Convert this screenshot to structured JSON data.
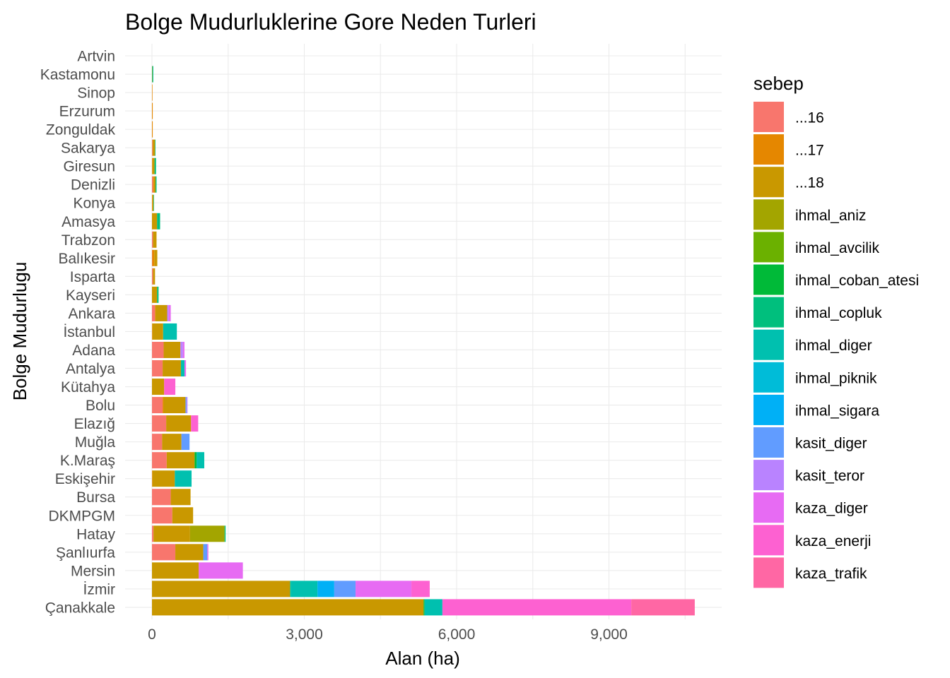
{
  "chart_data": {
    "type": "bar",
    "orientation": "horizontal",
    "stacked": true,
    "title": "Bolge Mudurluklerine Gore Neden Turleri",
    "xlabel": "Alan (ha)",
    "ylabel": "Bolge Mudurlugu",
    "xlim": [
      -150,
      11250
    ],
    "x_ticks": [
      0,
      3000,
      6000,
      9000
    ],
    "x_tick_labels": [
      "0",
      "3,000",
      "6,000",
      "9,000"
    ],
    "grid": true,
    "legend_position": "right",
    "legend_title": "sebep",
    "categories": [
      "Artvin",
      "Kastamonu",
      "Sinop",
      "Erzurum",
      "Zonguldak",
      "Sakarya",
      "Giresun",
      "Denizli",
      "Konya",
      "Amasya",
      "Trabzon",
      "Balıkesir",
      "Isparta",
      "Kayseri",
      "Ankara",
      "İstanbul",
      "Adana",
      "Antalya",
      "Kütahya",
      "Bolu",
      "Elazığ",
      "Muğla",
      "K.Maraş",
      "Eskişehir",
      "Bursa",
      "DKMPGM",
      "Hatay",
      "Şanlıurfa",
      "Mersin",
      "İzmir",
      "Çanakkale"
    ],
    "series": [
      {
        "name": "...16",
        "color": "#F8766D",
        "values": [
          0,
          0,
          0,
          0,
          0,
          10,
          0,
          20,
          0,
          0,
          20,
          5,
          20,
          0,
          60,
          0,
          230,
          210,
          0,
          210,
          280,
          200,
          290,
          0,
          370,
          400,
          30,
          460,
          0,
          0,
          0
        ]
      },
      {
        "name": "...17",
        "color": "#E58700",
        "values": [
          0,
          5,
          10,
          15,
          15,
          10,
          10,
          20,
          10,
          0,
          0,
          40,
          0,
          0,
          10,
          10,
          0,
          0,
          0,
          20,
          0,
          0,
          0,
          10,
          0,
          0,
          0,
          0,
          0,
          0,
          0
        ]
      },
      {
        "name": "...18",
        "color": "#C99800",
        "values": [
          0,
          0,
          0,
          0,
          0,
          40,
          40,
          30,
          20,
          100,
          70,
          60,
          40,
          100,
          230,
          210,
          330,
          360,
          240,
          430,
          490,
          380,
          550,
          440,
          390,
          410,
          720,
          550,
          920,
          2720,
          5350
        ]
      },
      {
        "name": "ihmal_aniz",
        "color": "#A3A500",
        "values": [
          0,
          0,
          0,
          0,
          0,
          0,
          0,
          0,
          0,
          0,
          0,
          0,
          0,
          0,
          0,
          0,
          0,
          0,
          0,
          0,
          0,
          0,
          0,
          0,
          0,
          0,
          680,
          0,
          0,
          0,
          0
        ]
      },
      {
        "name": "ihmal_avcilik",
        "color": "#6BB100",
        "values": [
          0,
          0,
          0,
          0,
          0,
          0,
          0,
          0,
          0,
          0,
          0,
          0,
          0,
          0,
          0,
          0,
          0,
          0,
          0,
          0,
          0,
          0,
          0,
          0,
          0,
          0,
          0,
          0,
          0,
          0,
          0
        ]
      },
      {
        "name": "ihmal_coban_atesi",
        "color": "#00BA38",
        "values": [
          0,
          5,
          0,
          0,
          0,
          0,
          0,
          0,
          0,
          0,
          0,
          0,
          0,
          0,
          0,
          0,
          0,
          0,
          0,
          0,
          0,
          0,
          40,
          0,
          0,
          0,
          0,
          0,
          0,
          0,
          20
        ]
      },
      {
        "name": "ihmal_copluk",
        "color": "#00BF7D",
        "values": [
          0,
          10,
          0,
          0,
          0,
          10,
          30,
          20,
          10,
          60,
          0,
          0,
          0,
          30,
          0,
          0,
          0,
          0,
          0,
          0,
          0,
          0,
          0,
          0,
          0,
          0,
          20,
          0,
          0,
          10,
          0
        ]
      },
      {
        "name": "ihmal_diger",
        "color": "#00C0AF",
        "values": [
          0,
          5,
          0,
          0,
          0,
          0,
          0,
          0,
          0,
          0,
          0,
          0,
          0,
          0,
          0,
          270,
          0,
          70,
          0,
          0,
          0,
          0,
          150,
          330,
          0,
          0,
          0,
          0,
          0,
          530,
          350
        ]
      },
      {
        "name": "ihmal_piknik",
        "color": "#00BCD8",
        "values": [
          0,
          0,
          0,
          0,
          0,
          0,
          0,
          0,
          0,
          0,
          0,
          0,
          0,
          0,
          0,
          0,
          0,
          0,
          0,
          0,
          0,
          0,
          0,
          0,
          0,
          0,
          0,
          0,
          0,
          0,
          0
        ]
      },
      {
        "name": "ihmal_sigara",
        "color": "#00B0F6",
        "values": [
          0,
          0,
          0,
          0,
          0,
          0,
          0,
          0,
          0,
          0,
          0,
          0,
          0,
          0,
          0,
          0,
          0,
          0,
          0,
          0,
          0,
          0,
          0,
          0,
          0,
          0,
          0,
          0,
          0,
          330,
          0
        ]
      },
      {
        "name": "kasit_diger",
        "color": "#619CFF",
        "values": [
          0,
          0,
          0,
          0,
          0,
          0,
          0,
          0,
          0,
          0,
          0,
          0,
          0,
          0,
          0,
          0,
          0,
          0,
          0,
          20,
          0,
          160,
          0,
          0,
          0,
          0,
          0,
          80,
          0,
          420,
          0
        ]
      },
      {
        "name": "kasit_teror",
        "color": "#B983FF",
        "values": [
          0,
          0,
          0,
          0,
          0,
          0,
          0,
          0,
          0,
          0,
          0,
          0,
          0,
          0,
          30,
          0,
          50,
          0,
          0,
          20,
          0,
          0,
          0,
          0,
          0,
          0,
          0,
          0,
          0,
          0,
          0
        ]
      },
      {
        "name": "kaza_diger",
        "color": "#E76BF3",
        "values": [
          0,
          0,
          0,
          0,
          0,
          0,
          0,
          0,
          0,
          0,
          0,
          0,
          0,
          0,
          40,
          0,
          30,
          30,
          0,
          0,
          0,
          0,
          0,
          0,
          0,
          0,
          0,
          20,
          870,
          1100,
          0
        ]
      },
      {
        "name": "kaza_enerji",
        "color": "#FD61D1",
        "values": [
          0,
          0,
          0,
          0,
          0,
          0,
          0,
          0,
          0,
          0,
          0,
          0,
          0,
          0,
          0,
          0,
          0,
          0,
          220,
          0,
          140,
          0,
          0,
          0,
          0,
          0,
          0,
          0,
          0,
          360,
          3720
        ]
      },
      {
        "name": "kaza_trafik",
        "color": "#FF67A4",
        "values": [
          0,
          0,
          0,
          0,
          0,
          0,
          0,
          0,
          0,
          0,
          0,
          0,
          0,
          0,
          0,
          0,
          0,
          0,
          0,
          0,
          0,
          0,
          0,
          0,
          0,
          0,
          0,
          0,
          0,
          0,
          1250
        ]
      }
    ]
  }
}
